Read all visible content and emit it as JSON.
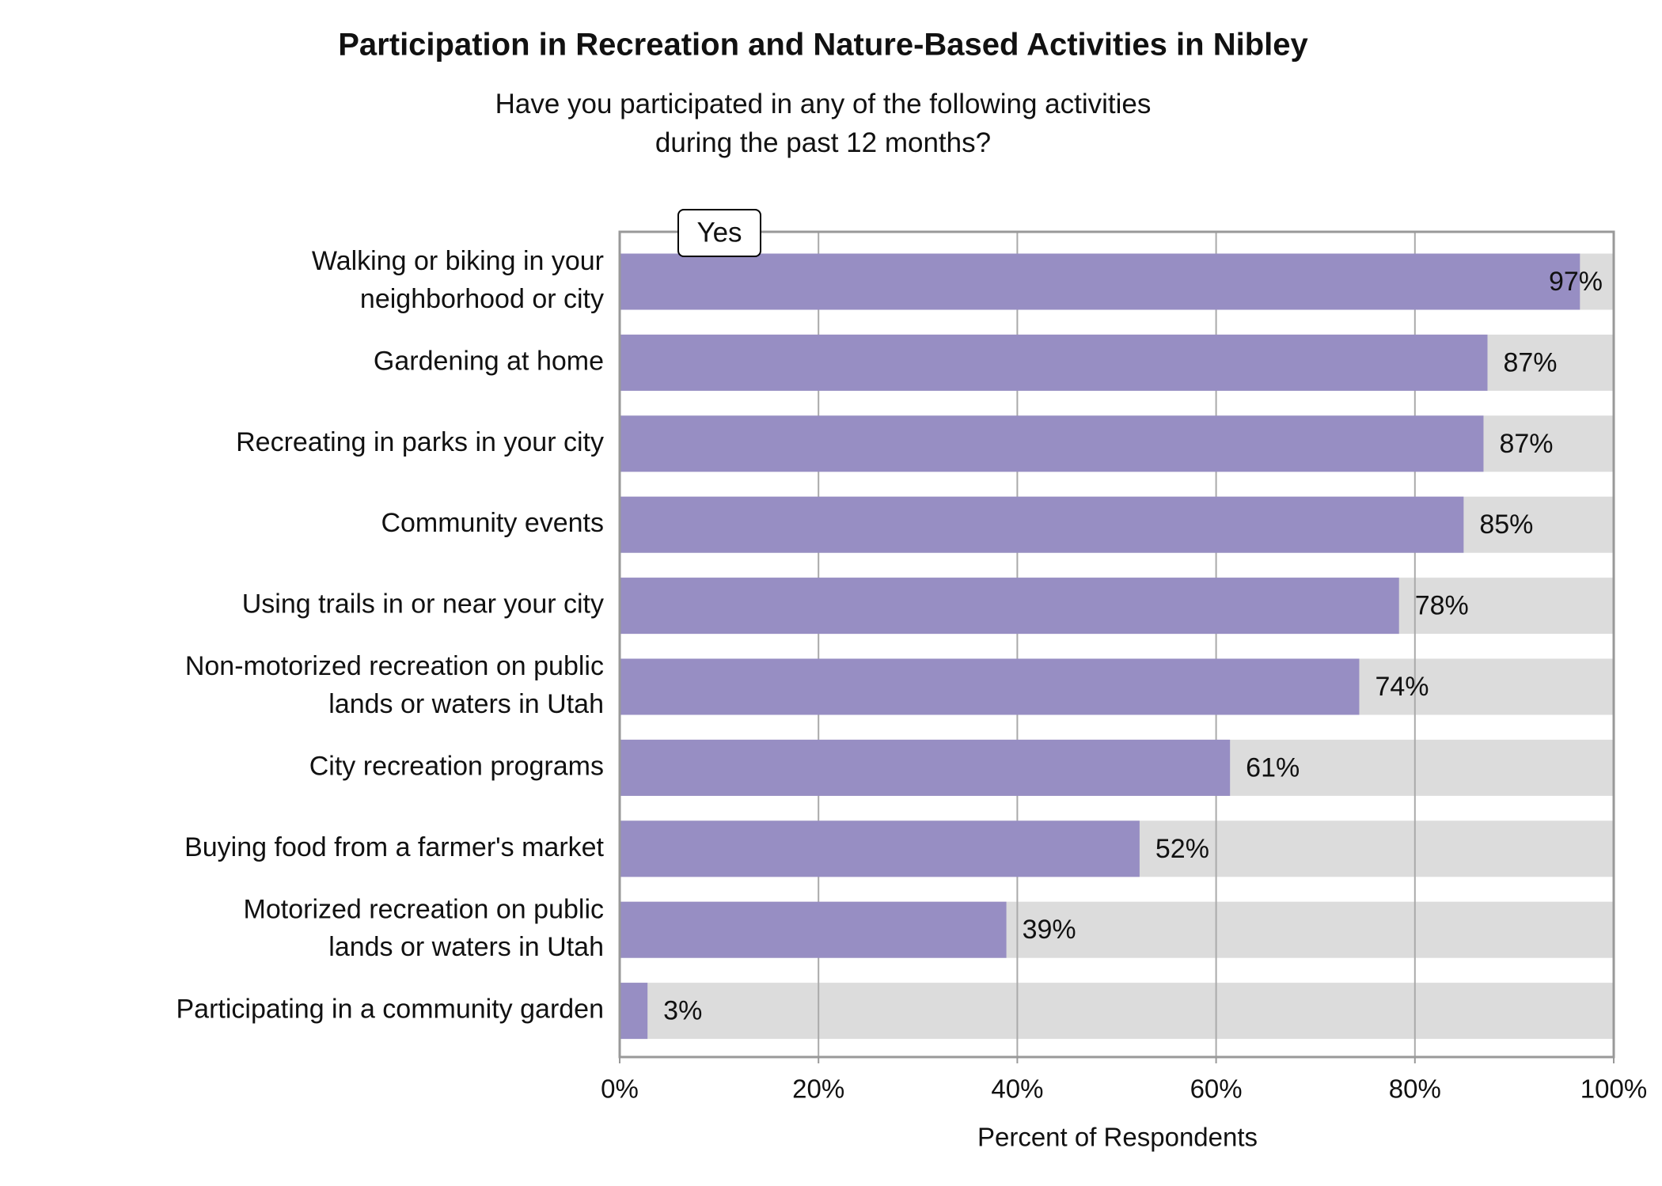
{
  "chart_data": {
    "type": "bar",
    "orientation": "horizontal",
    "title": "Participation in Recreation and Nature-Based Activities in Nibley",
    "subtitle": "Have you participated in any of the following activities\nduring the past 12 months?",
    "xlabel": "Percent of Respondents",
    "categories": [
      "Walking or biking in your\nneighborhood or city",
      "Gardening at home",
      "Recreating in parks in your city",
      "Community events",
      "Using trails in or near your city",
      "Non-motorized recreation on public\nlands or waters in Utah",
      "City recreation programs",
      "Buying food from a farmer's market",
      "Motorized recreation on public\nlands or waters in Utah",
      "Participating in a community garden"
    ],
    "series": [
      {
        "name": "Yes",
        "color": "#978ec3",
        "values": [
          96.6,
          87.3,
          86.9,
          84.9,
          78.4,
          74.4,
          61.4,
          52.3,
          38.9,
          2.8
        ],
        "value_labels": [
          "97%",
          "87%",
          "87%",
          "85%",
          "78%",
          "74%",
          "61%",
          "52%",
          "39%",
          "3%"
        ]
      }
    ],
    "xlim": [
      0,
      100
    ],
    "xticks": [
      {
        "value": 0,
        "label": "0%"
      },
      {
        "value": 20,
        "label": "20%"
      },
      {
        "value": 40,
        "label": "40%"
      },
      {
        "value": 60,
        "label": "60%"
      },
      {
        "value": 80,
        "label": "80%"
      },
      {
        "value": 100,
        "label": "100%"
      }
    ],
    "grid": true
  }
}
